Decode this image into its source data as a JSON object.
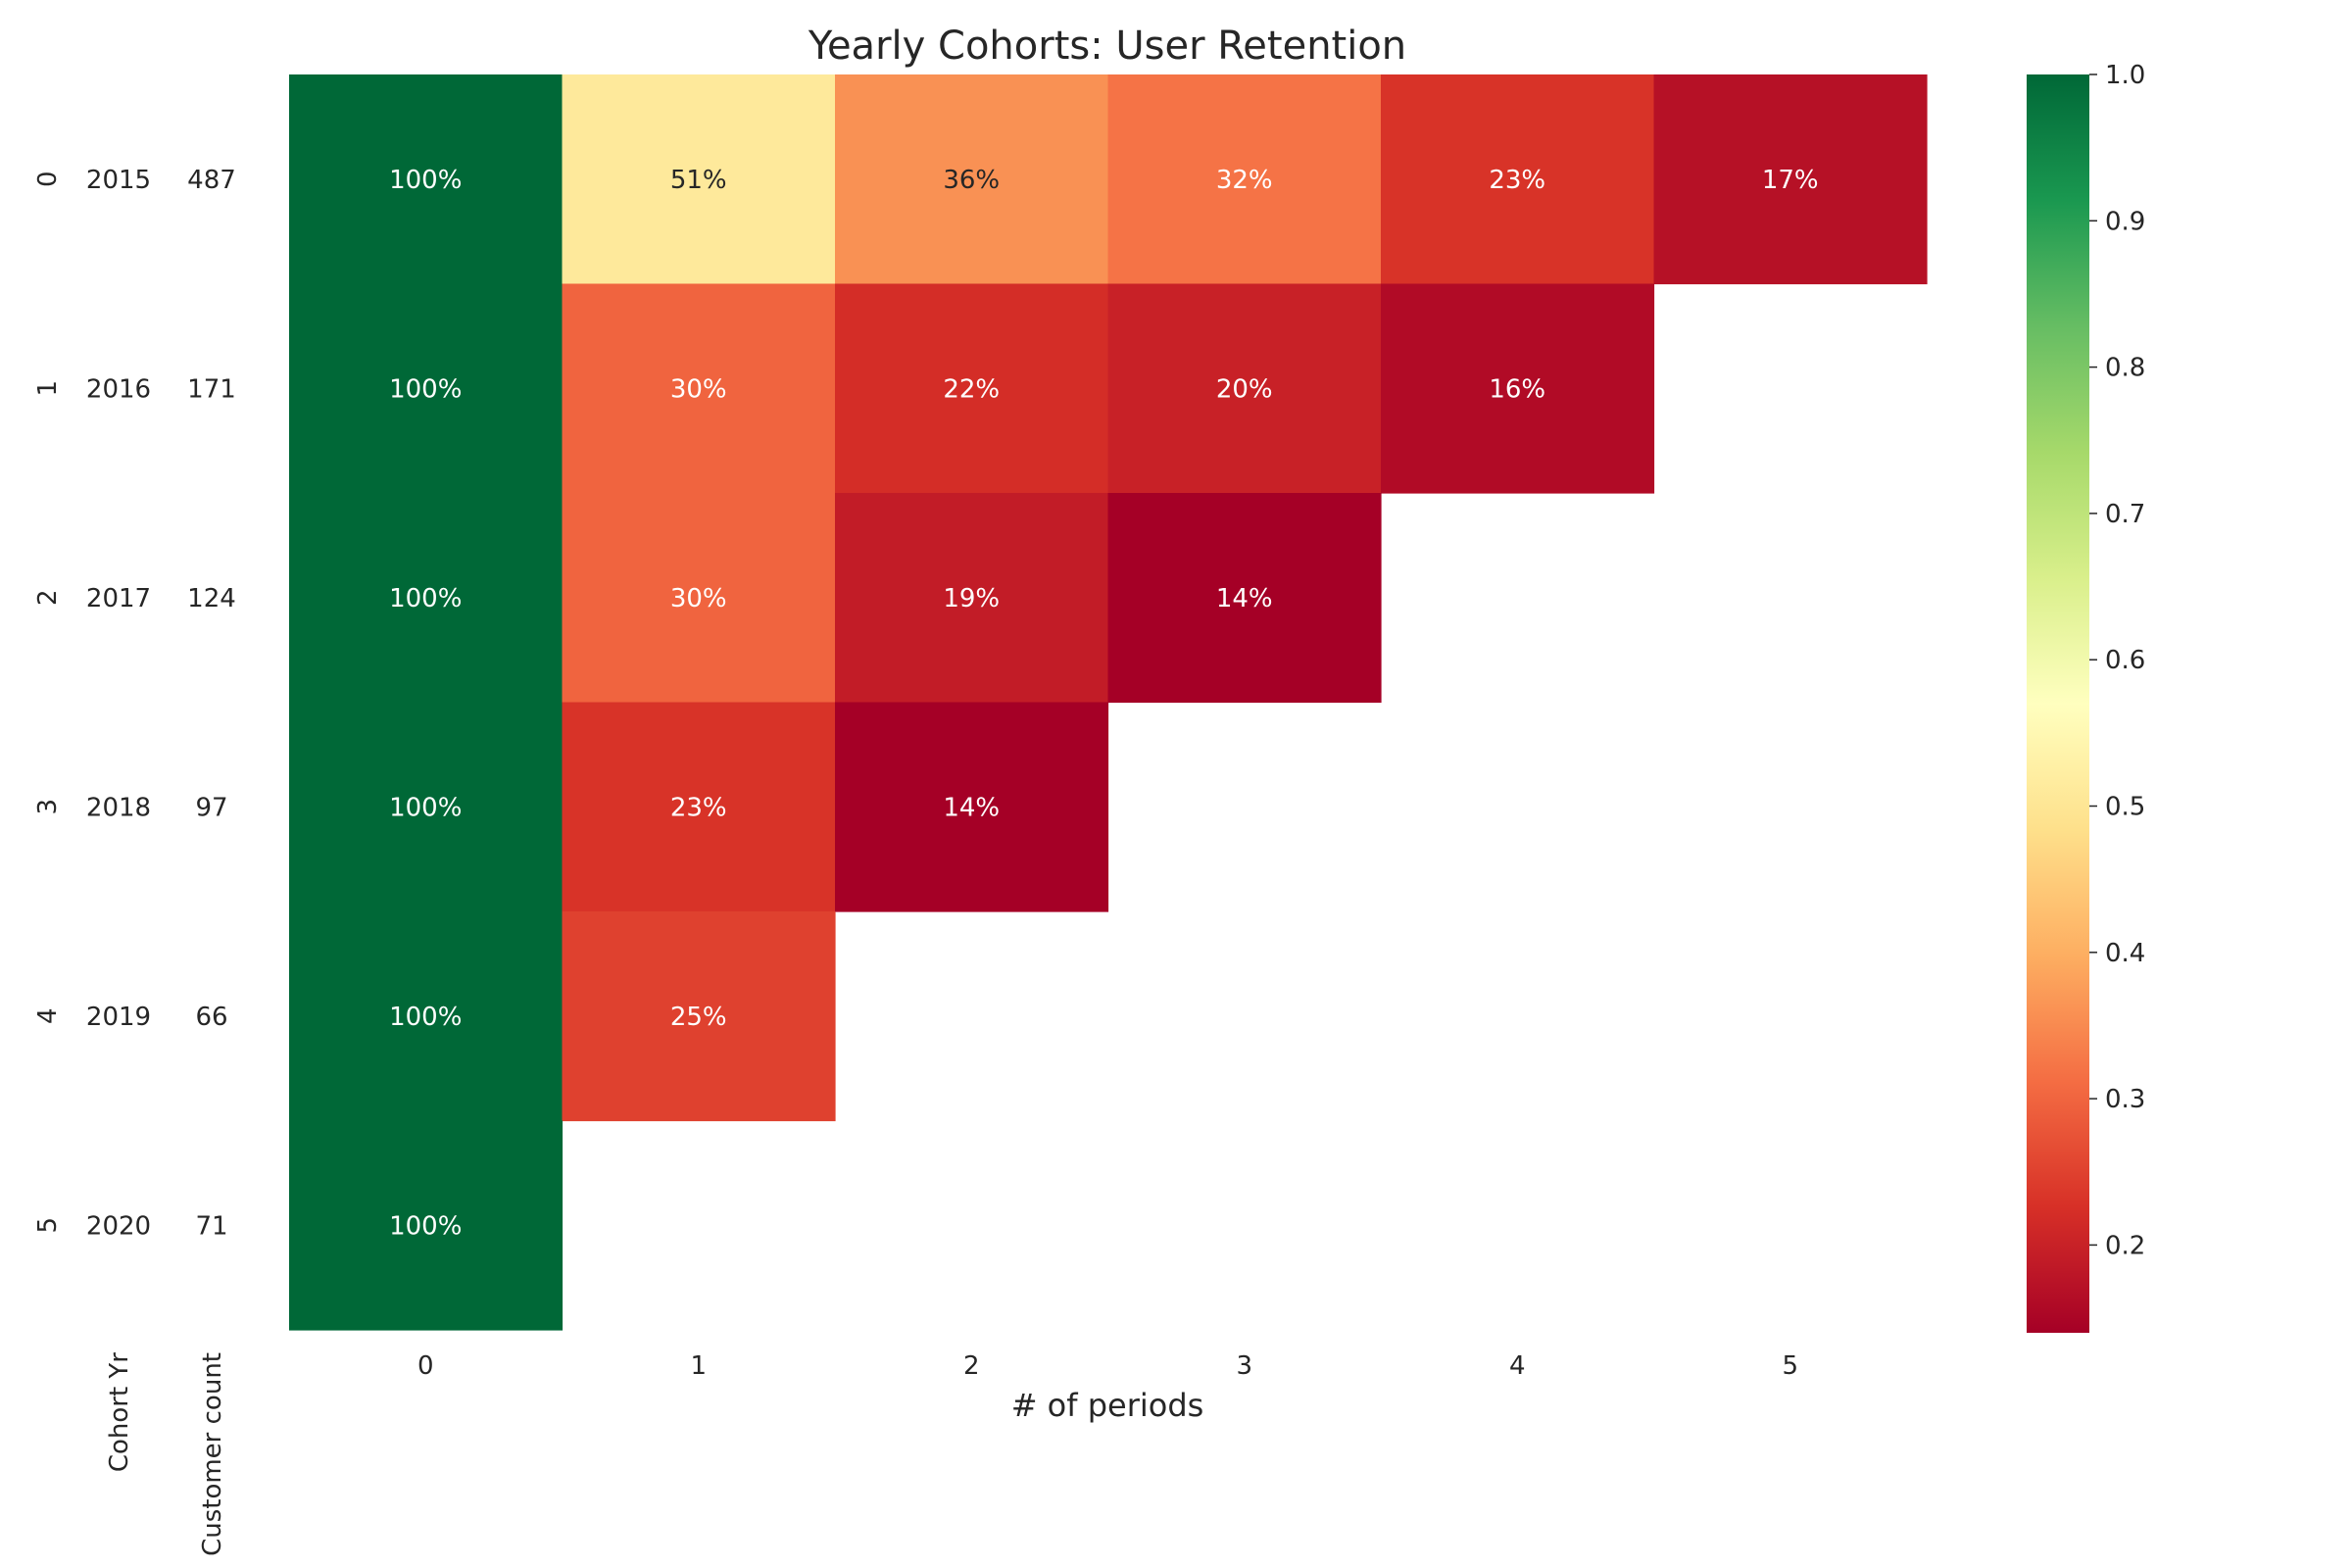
{
  "chart_data": {
    "type": "heatmap",
    "title": "Yearly Cohorts: User Retention",
    "xlabel": "# of periods",
    "side_table_headers": [
      "Cohort Yr",
      "Customer count"
    ],
    "row_index": [
      "0",
      "1",
      "2",
      "3",
      "4",
      "5"
    ],
    "cohort_years": [
      "2015",
      "2016",
      "2017",
      "2018",
      "2019",
      "2020"
    ],
    "customer_counts": [
      "487",
      "171",
      "124",
      "97",
      "66",
      "71"
    ],
    "periods": [
      "0",
      "1",
      "2",
      "3",
      "4",
      "5"
    ],
    "values": [
      [
        1.0,
        0.51,
        0.36,
        0.32,
        0.23,
        0.17
      ],
      [
        1.0,
        0.3,
        0.22,
        0.2,
        0.16,
        null
      ],
      [
        1.0,
        0.3,
        0.19,
        0.14,
        null,
        null
      ],
      [
        1.0,
        0.23,
        0.14,
        null,
        null,
        null
      ],
      [
        1.0,
        0.25,
        null,
        null,
        null,
        null
      ],
      [
        1.0,
        null,
        null,
        null,
        null,
        null
      ]
    ],
    "value_format": "percent",
    "colormap": "RdYlGn",
    "color_range": [
      0.14,
      1.0
    ],
    "colorbar_ticks": [
      "0.2",
      "0.3",
      "0.4",
      "0.5",
      "0.6",
      "0.7",
      "0.8",
      "0.9",
      "1.0"
    ],
    "colorbar_tick_values": [
      0.2,
      0.3,
      0.4,
      0.5,
      0.6,
      0.7,
      0.8,
      0.9,
      1.0
    ]
  }
}
